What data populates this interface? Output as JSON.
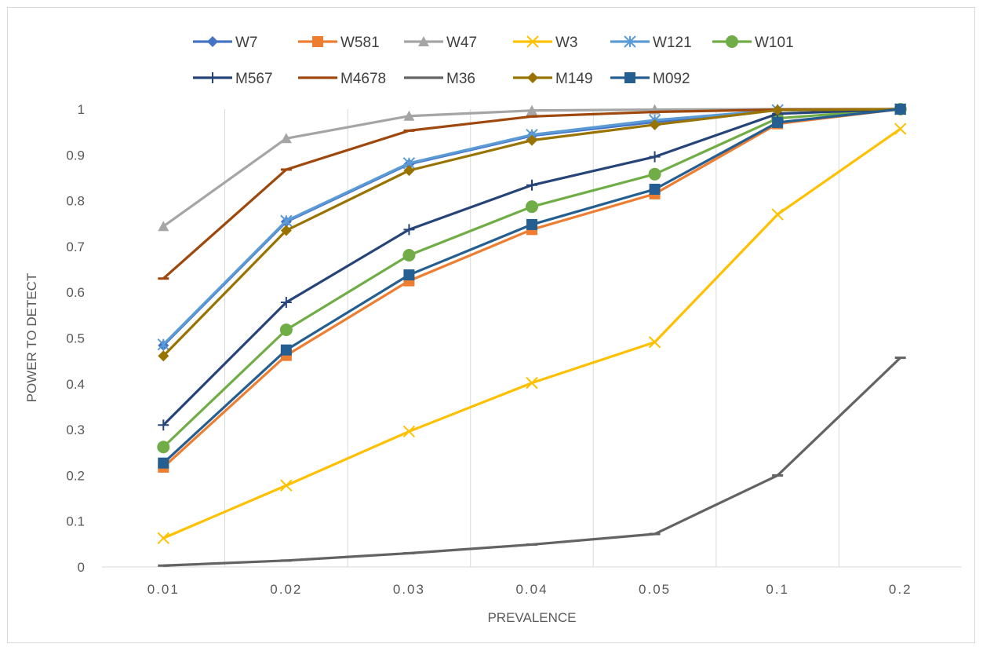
{
  "chart_data": {
    "type": "line",
    "title": "",
    "xlabel": "PREVALENCE",
    "ylabel": "POWER TO DETECT",
    "categories": [
      "0.01",
      "0.02",
      "0.03",
      "0.04",
      "0.05",
      "0.1",
      "0.2"
    ],
    "ylim": [
      0,
      1
    ],
    "yticks": [
      "0",
      "0.1",
      "0.2",
      "0.3",
      "0.4",
      "0.5",
      "0.6",
      "0.7",
      "0.8",
      "0.9",
      "1"
    ],
    "grid": "vertical",
    "legend_position": "top",
    "series": [
      {
        "name": "W7",
        "color": "#4472c4",
        "marker": "diamond",
        "values": [
          0.484,
          0.754,
          0.88,
          0.942,
          0.972,
          0.998,
          1.0
        ]
      },
      {
        "name": "W581",
        "color": "#ed7d31",
        "marker": "square",
        "values": [
          0.218,
          0.462,
          0.625,
          0.737,
          0.815,
          0.968,
          1.0
        ]
      },
      {
        "name": "W47",
        "color": "#a5a5a5",
        "marker": "triangle",
        "values": [
          0.744,
          0.936,
          0.985,
          0.997,
          0.999,
          1.0,
          1.0
        ]
      },
      {
        "name": "W3",
        "color": "#ffc000",
        "marker": "x",
        "values": [
          0.063,
          0.178,
          0.296,
          0.402,
          0.491,
          0.77,
          0.957
        ]
      },
      {
        "name": "W121",
        "color": "#5b9bd5",
        "marker": "star",
        "values": [
          0.486,
          0.756,
          0.882,
          0.944,
          0.976,
          0.998,
          1.0
        ]
      },
      {
        "name": "W101",
        "color": "#70ad47",
        "marker": "circle",
        "values": [
          0.262,
          0.518,
          0.681,
          0.787,
          0.858,
          0.98,
          1.0
        ]
      },
      {
        "name": "M567",
        "color": "#264478",
        "marker": "plus",
        "values": [
          0.31,
          0.578,
          0.737,
          0.834,
          0.896,
          0.99,
          1.0
        ]
      },
      {
        "name": "M4678",
        "color": "#9e480e",
        "marker": "dash",
        "values": [
          0.63,
          0.868,
          0.953,
          0.984,
          0.994,
          0.999,
          1.0
        ]
      },
      {
        "name": "M36",
        "color": "#636363",
        "marker": "dash",
        "values": [
          0.003,
          0.014,
          0.03,
          0.049,
          0.072,
          0.2,
          0.457
        ]
      },
      {
        "name": "M149",
        "color": "#997300",
        "marker": "diamond",
        "values": [
          0.461,
          0.735,
          0.866,
          0.932,
          0.966,
          0.998,
          1.0
        ]
      },
      {
        "name": "M092",
        "color": "#255e91",
        "marker": "square",
        "values": [
          0.227,
          0.474,
          0.638,
          0.748,
          0.825,
          0.971,
          1.0
        ]
      }
    ]
  }
}
